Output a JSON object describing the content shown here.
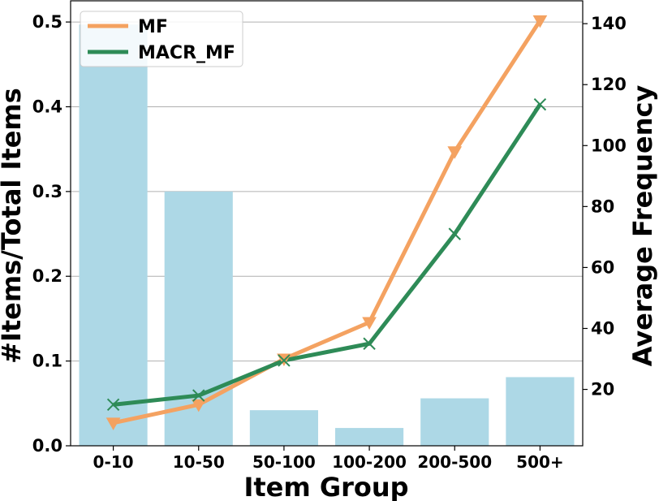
{
  "chart_data": {
    "type": "bar",
    "xlabel": "Item Group",
    "ylabel_left": "#Items/Total Items",
    "ylabel_right": "Average Frequency",
    "categories": [
      "0-10",
      "10-50",
      "50-100",
      "100-200",
      "200-500",
      "500+"
    ],
    "bar_series": {
      "values": [
        0.497,
        0.3,
        0.042,
        0.021,
        0.056,
        0.081
      ],
      "color": "#add8e6",
      "axis": "left"
    },
    "line_series": [
      {
        "name": "MF",
        "values": [
          9,
          15,
          30,
          42,
          98,
          141
        ],
        "color": "#f4a261",
        "marker": "triangle-down",
        "axis": "right"
      },
      {
        "name": "MACR_MF",
        "values": [
          15,
          18,
          29.5,
          35,
          71,
          113.5
        ],
        "color": "#2e8b57",
        "marker": "x",
        "axis": "right"
      }
    ],
    "ylim_left": [
      0,
      0.525
    ],
    "yticks_left": [
      0.0,
      0.1,
      0.2,
      0.3,
      0.4,
      0.5
    ],
    "ytick_labels_left": [
      "0.0",
      "0.1",
      "0.2",
      "0.3",
      "0.4",
      "0.5"
    ],
    "ylim_right": [
      1.5,
      147.5
    ],
    "yticks_right": [
      20,
      40,
      60,
      80,
      100,
      120,
      140
    ],
    "ytick_labels_right": [
      "20",
      "40",
      "60",
      "80",
      "100",
      "120",
      "140"
    ],
    "grid": "horizontal, left axis",
    "legend_placement": "top-left"
  }
}
